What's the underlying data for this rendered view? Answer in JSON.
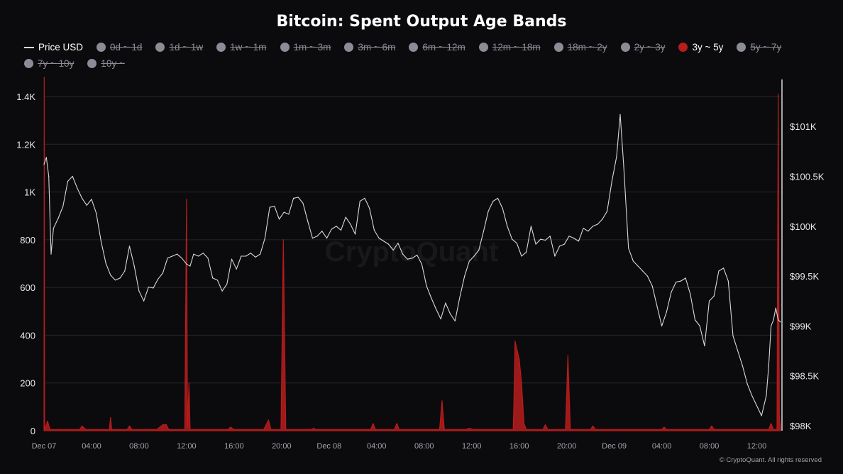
{
  "title": "Bitcoin: Spent Output Age Bands",
  "watermark": "CryptoQuant",
  "footer": "© CryptoQuant. All rights reserved",
  "legend": [
    {
      "label": "Price USD",
      "state": "on",
      "icon": "line",
      "color": "#d9d9d9"
    },
    {
      "label": "0d ~ 1d",
      "state": "off",
      "icon": "circle",
      "color": "#8b8d96"
    },
    {
      "label": "1d ~ 1w",
      "state": "off",
      "icon": "circle",
      "color": "#8b8d96"
    },
    {
      "label": "1w ~ 1m",
      "state": "off",
      "icon": "circle",
      "color": "#8b8d96"
    },
    {
      "label": "1m ~ 3m",
      "state": "off",
      "icon": "circle",
      "color": "#8b8d96"
    },
    {
      "label": "3m ~ 6m",
      "state": "off",
      "icon": "circle",
      "color": "#8b8d96"
    },
    {
      "label": "6m ~ 12m",
      "state": "off",
      "icon": "circle",
      "color": "#8b8d96"
    },
    {
      "label": "12m ~ 18m",
      "state": "off",
      "icon": "circle",
      "color": "#8b8d96"
    },
    {
      "label": "18m ~ 2y",
      "state": "off",
      "icon": "circle",
      "color": "#8b8d96"
    },
    {
      "label": "2y ~ 3y",
      "state": "off",
      "icon": "circle",
      "color": "#8b8d96"
    },
    {
      "label": "3y ~ 5y",
      "state": "on",
      "icon": "circle",
      "color": "#b81c1c"
    },
    {
      "label": "5y ~ 7y",
      "state": "off",
      "icon": "circle",
      "color": "#8b8d96"
    },
    {
      "label": "7y ~ 10y",
      "state": "off",
      "icon": "circle",
      "color": "#8b8d96"
    },
    {
      "label": "10y ~",
      "state": "off",
      "icon": "circle",
      "color": "#8b8d96"
    }
  ],
  "chart_data": {
    "type": "line",
    "title": "Bitcoin: Spent Output Age Bands",
    "xlabel": "",
    "ylabel": "",
    "grid": "horizontal",
    "legend_placement": "top",
    "x_range_hours": [
      0,
      62
    ],
    "x_ticks": [
      {
        "t": 0,
        "label": "Dec 07"
      },
      {
        "t": 4,
        "label": "04:00"
      },
      {
        "t": 8,
        "label": "08:00"
      },
      {
        "t": 12,
        "label": "12:00"
      },
      {
        "t": 16,
        "label": "16:00"
      },
      {
        "t": 20,
        "label": "20:00"
      },
      {
        "t": 24,
        "label": "Dec 08"
      },
      {
        "t": 28,
        "label": "04:00"
      },
      {
        "t": 32,
        "label": "08:00"
      },
      {
        "t": 36,
        "label": "12:00"
      },
      {
        "t": 40,
        "label": "16:00"
      },
      {
        "t": 44,
        "label": "20:00"
      },
      {
        "t": 48,
        "label": "Dec 09"
      },
      {
        "t": 52,
        "label": "04:00"
      },
      {
        "t": 56,
        "label": "08:00"
      },
      {
        "t": 60,
        "label": "12:00"
      }
    ],
    "y_left": {
      "min": 0,
      "max": 1400,
      "ticks": [
        0,
        200,
        400,
        600,
        800,
        1000,
        1200,
        1400
      ],
      "tick_labels": [
        "0",
        "200",
        "400",
        "600",
        "800",
        "1K",
        "1.2K",
        "1.4K"
      ]
    },
    "y_right": {
      "min": 97950,
      "max": 101300,
      "ticks": [
        98000,
        98500,
        99000,
        99500,
        100000,
        100500,
        101000
      ],
      "tick_labels": [
        "$98K",
        "$98.5K",
        "$99K",
        "$99.5K",
        "$100K",
        "$100.5K",
        "$101K"
      ]
    },
    "series": [
      {
        "name": "3y ~ 5y",
        "axis": "left",
        "color": "#b81c1c",
        "baseline": [
          [
            0,
            5
          ],
          [
            62,
            5
          ]
        ],
        "points": [
          [
            0,
            5
          ],
          [
            0.02,
            1480
          ],
          [
            0.05,
            5
          ],
          [
            0.3,
            40
          ],
          [
            0.5,
            5
          ],
          [
            3,
            5
          ],
          [
            3.2,
            20
          ],
          [
            3.5,
            5
          ],
          [
            5.5,
            5
          ],
          [
            5.6,
            55
          ],
          [
            5.7,
            5
          ],
          [
            7,
            5
          ],
          [
            7.2,
            20
          ],
          [
            7.4,
            5
          ],
          [
            9.5,
            5
          ],
          [
            10,
            25
          ],
          [
            10.3,
            25
          ],
          [
            10.5,
            5
          ],
          [
            11.85,
            5
          ],
          [
            12,
            970
          ],
          [
            12.08,
            15
          ],
          [
            12.2,
            200
          ],
          [
            12.3,
            5
          ],
          [
            15.5,
            5
          ],
          [
            15.7,
            15
          ],
          [
            16,
            5
          ],
          [
            18.5,
            5
          ],
          [
            18.9,
            45
          ],
          [
            19.1,
            5
          ],
          [
            19.95,
            5
          ],
          [
            20.15,
            800
          ],
          [
            20.35,
            5
          ],
          [
            22.5,
            5
          ],
          [
            22.7,
            10
          ],
          [
            22.9,
            5
          ],
          [
            27.5,
            5
          ],
          [
            27.7,
            30
          ],
          [
            27.9,
            5
          ],
          [
            29.5,
            5
          ],
          [
            29.7,
            30
          ],
          [
            29.9,
            5
          ],
          [
            33.3,
            5
          ],
          [
            33.5,
            125
          ],
          [
            33.7,
            5
          ],
          [
            35.5,
            5
          ],
          [
            35.8,
            10
          ],
          [
            36.1,
            5
          ],
          [
            39.5,
            5
          ],
          [
            39.55,
            100
          ],
          [
            39.65,
            375
          ],
          [
            40.0,
            300
          ],
          [
            40.2,
            200
          ],
          [
            40.4,
            30
          ],
          [
            40.6,
            5
          ],
          [
            42,
            5
          ],
          [
            42.2,
            25
          ],
          [
            42.4,
            5
          ],
          [
            43.9,
            5
          ],
          [
            44.1,
            315
          ],
          [
            44.3,
            5
          ],
          [
            46,
            5
          ],
          [
            46.2,
            20
          ],
          [
            46.4,
            5
          ],
          [
            52,
            5
          ],
          [
            52.2,
            15
          ],
          [
            52.4,
            5
          ],
          [
            56,
            5
          ],
          [
            56.2,
            20
          ],
          [
            56.4,
            5
          ],
          [
            61,
            5
          ],
          [
            61.2,
            30
          ],
          [
            61.4,
            5
          ],
          [
            61.7,
            5
          ],
          [
            61.8,
            1410
          ],
          [
            61.9,
            60
          ],
          [
            62,
            5
          ]
        ]
      },
      {
        "name": "Price USD",
        "axis": "right",
        "color": "#d9d9d9",
        "points": [
          [
            0,
            100620
          ],
          [
            0.2,
            100690
          ],
          [
            0.4,
            100500
          ],
          [
            0.6,
            99720
          ],
          [
            0.8,
            99980
          ],
          [
            1.2,
            100080
          ],
          [
            1.6,
            100200
          ],
          [
            2,
            100450
          ],
          [
            2.4,
            100500
          ],
          [
            2.8,
            100380
          ],
          [
            3.2,
            100280
          ],
          [
            3.6,
            100210
          ],
          [
            4.0,
            100270
          ],
          [
            4.4,
            100130
          ],
          [
            4.8,
            99850
          ],
          [
            5.2,
            99630
          ],
          [
            5.6,
            99510
          ],
          [
            6.0,
            99460
          ],
          [
            6.4,
            99480
          ],
          [
            6.8,
            99550
          ],
          [
            7.2,
            99800
          ],
          [
            7.6,
            99600
          ],
          [
            8.0,
            99350
          ],
          [
            8.4,
            99250
          ],
          [
            8.8,
            99390
          ],
          [
            9.2,
            99380
          ],
          [
            9.6,
            99470
          ],
          [
            10.0,
            99530
          ],
          [
            10.4,
            99680
          ],
          [
            10.8,
            99700
          ],
          [
            11.2,
            99720
          ],
          [
            11.6,
            99680
          ],
          [
            12.0,
            99620
          ],
          [
            12.3,
            99600
          ],
          [
            12.6,
            99720
          ],
          [
            13.0,
            99700
          ],
          [
            13.4,
            99730
          ],
          [
            13.8,
            99680
          ],
          [
            14.2,
            99480
          ],
          [
            14.6,
            99460
          ],
          [
            15.0,
            99350
          ],
          [
            15.4,
            99420
          ],
          [
            15.8,
            99670
          ],
          [
            16.2,
            99570
          ],
          [
            16.6,
            99700
          ],
          [
            17.0,
            99700
          ],
          [
            17.4,
            99730
          ],
          [
            17.8,
            99690
          ],
          [
            18.2,
            99720
          ],
          [
            18.6,
            99880
          ],
          [
            19.0,
            100190
          ],
          [
            19.4,
            100200
          ],
          [
            19.8,
            100070
          ],
          [
            20.2,
            100140
          ],
          [
            20.6,
            100120
          ],
          [
            21.0,
            100280
          ],
          [
            21.4,
            100290
          ],
          [
            21.8,
            100230
          ],
          [
            22.2,
            100050
          ],
          [
            22.6,
            99880
          ],
          [
            23.0,
            99900
          ],
          [
            23.4,
            99950
          ],
          [
            23.8,
            99880
          ],
          [
            24.2,
            99970
          ],
          [
            24.6,
            100000
          ],
          [
            25.0,
            99960
          ],
          [
            25.4,
            100090
          ],
          [
            25.8,
            100020
          ],
          [
            26.2,
            99920
          ],
          [
            26.6,
            100250
          ],
          [
            27.0,
            100280
          ],
          [
            27.4,
            100180
          ],
          [
            27.8,
            99960
          ],
          [
            28.2,
            99880
          ],
          [
            28.6,
            99850
          ],
          [
            29.0,
            99820
          ],
          [
            29.4,
            99760
          ],
          [
            29.8,
            99830
          ],
          [
            30.2,
            99720
          ],
          [
            30.6,
            99670
          ],
          [
            31.0,
            99680
          ],
          [
            31.4,
            99710
          ],
          [
            31.8,
            99620
          ],
          [
            32.2,
            99400
          ],
          [
            32.6,
            99280
          ],
          [
            33.0,
            99170
          ],
          [
            33.4,
            99070
          ],
          [
            33.8,
            99230
          ],
          [
            34.2,
            99120
          ],
          [
            34.6,
            99050
          ],
          [
            35.0,
            99290
          ],
          [
            35.4,
            99500
          ],
          [
            35.8,
            99650
          ],
          [
            36.2,
            99700
          ],
          [
            36.6,
            99760
          ],
          [
            37.0,
            99950
          ],
          [
            37.4,
            100150
          ],
          [
            37.8,
            100250
          ],
          [
            38.2,
            100280
          ],
          [
            38.6,
            100180
          ],
          [
            39.0,
            100000
          ],
          [
            39.4,
            99870
          ],
          [
            39.8,
            99830
          ],
          [
            40.2,
            99700
          ],
          [
            40.6,
            99740
          ],
          [
            41.0,
            100000
          ],
          [
            41.4,
            99820
          ],
          [
            41.8,
            99870
          ],
          [
            42.2,
            99860
          ],
          [
            42.6,
            99900
          ],
          [
            43.0,
            99700
          ],
          [
            43.4,
            99800
          ],
          [
            43.8,
            99820
          ],
          [
            44.2,
            99900
          ],
          [
            44.6,
            99880
          ],
          [
            45.0,
            99850
          ],
          [
            45.4,
            99980
          ],
          [
            45.8,
            99950
          ],
          [
            46.2,
            100000
          ],
          [
            46.6,
            100020
          ],
          [
            47.0,
            100070
          ],
          [
            47.4,
            100150
          ],
          [
            47.8,
            100450
          ],
          [
            48.2,
            100700
          ],
          [
            48.5,
            101120
          ],
          [
            48.8,
            100600
          ],
          [
            49.2,
            99780
          ],
          [
            49.6,
            99650
          ],
          [
            50.0,
            99600
          ],
          [
            50.4,
            99550
          ],
          [
            50.8,
            99500
          ],
          [
            51.2,
            99400
          ],
          [
            51.6,
            99200
          ],
          [
            52.0,
            99000
          ],
          [
            52.4,
            99140
          ],
          [
            52.8,
            99340
          ],
          [
            53.2,
            99440
          ],
          [
            53.6,
            99450
          ],
          [
            54.0,
            99480
          ],
          [
            54.4,
            99320
          ],
          [
            54.8,
            99060
          ],
          [
            55.2,
            99000
          ],
          [
            55.6,
            98800
          ],
          [
            56.0,
            99250
          ],
          [
            56.4,
            99300
          ],
          [
            56.8,
            99550
          ],
          [
            57.2,
            99580
          ],
          [
            57.6,
            99450
          ],
          [
            58.0,
            98900
          ],
          [
            58.4,
            98750
          ],
          [
            58.8,
            98600
          ],
          [
            59.2,
            98420
          ],
          [
            59.6,
            98300
          ],
          [
            60.0,
            98200
          ],
          [
            60.4,
            98100
          ],
          [
            60.8,
            98300
          ],
          [
            61.0,
            98600
          ],
          [
            61.2,
            99000
          ],
          [
            61.4,
            99060
          ],
          [
            61.6,
            99180
          ],
          [
            61.8,
            99060
          ],
          [
            62.0,
            99040
          ]
        ]
      }
    ]
  }
}
